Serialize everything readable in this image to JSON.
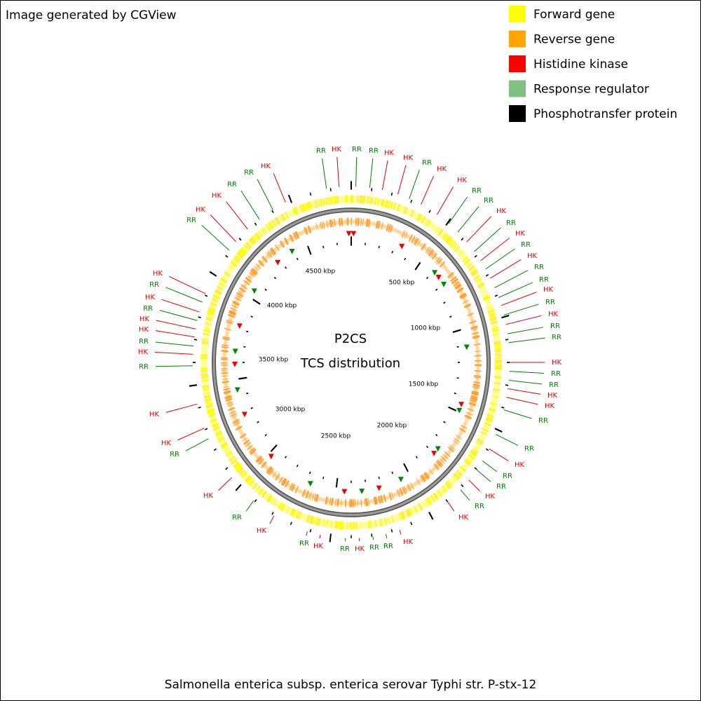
{
  "header": {
    "title": "Image generated by CGView"
  },
  "legend": [
    {
      "label": "Forward gene",
      "color": "#ffff00"
    },
    {
      "label": "Reverse gene",
      "color": "#ffa500"
    },
    {
      "label": "Histidine kinase",
      "color": "#ff0000"
    },
    {
      "label": "Response regulator",
      "color": "#80c080"
    },
    {
      "label": "Phosphotransfer protein",
      "color": "#000000"
    }
  ],
  "center": {
    "title": "P2CS",
    "subtitle": "TCS distribution"
  },
  "scale_labels": [
    "500 kbp",
    "1000 kbp",
    "1500 kbp",
    "2000 kbp",
    "2500 kbp",
    "3000 kbp",
    "3500 kbp",
    "4000 kbp",
    "4500 kbp"
  ],
  "callouts": [
    {
      "label": "RR",
      "color": "#008000"
    },
    {
      "label": "HK",
      "color": "#e00000"
    },
    {
      "label": "RR",
      "color": "#008000"
    },
    {
      "label": "RR",
      "color": "#008000"
    },
    {
      "label": "HK",
      "color": "#e00000"
    },
    {
      "label": "HK",
      "color": "#e00000"
    },
    {
      "label": "RR",
      "color": "#008000"
    },
    {
      "label": "HK",
      "color": "#e00000"
    },
    {
      "label": "HK",
      "color": "#e00000"
    },
    {
      "label": "RR",
      "color": "#008000"
    },
    {
      "label": "RR",
      "color": "#008000"
    },
    {
      "label": "HK",
      "color": "#e00000"
    },
    {
      "label": "RR",
      "color": "#008000"
    },
    {
      "label": "HK",
      "color": "#e00000"
    },
    {
      "label": "RR",
      "color": "#008000"
    },
    {
      "label": "HK",
      "color": "#e00000"
    },
    {
      "label": "RR",
      "color": "#008000"
    },
    {
      "label": "RR",
      "color": "#008000"
    },
    {
      "label": "HK",
      "color": "#e00000"
    },
    {
      "label": "RR",
      "color": "#008000"
    },
    {
      "label": "HK",
      "color": "#e00000"
    },
    {
      "label": "RR",
      "color": "#008000"
    },
    {
      "label": "RR",
      "color": "#008000"
    },
    {
      "label": "HK",
      "color": "#e00000"
    },
    {
      "label": "RR",
      "color": "#008000"
    },
    {
      "label": "RR",
      "color": "#008000"
    },
    {
      "label": "HK",
      "color": "#e00000"
    },
    {
      "label": "HK",
      "color": "#e00000"
    },
    {
      "label": "RR",
      "color": "#008000"
    },
    {
      "label": "RR",
      "color": "#008000"
    },
    {
      "label": "HK",
      "color": "#e00000"
    },
    {
      "label": "RR",
      "color": "#008000"
    },
    {
      "label": "RR",
      "color": "#008000"
    },
    {
      "label": "HK",
      "color": "#e00000"
    },
    {
      "label": "RR",
      "color": "#008000"
    },
    {
      "label": "HK",
      "color": "#e00000"
    },
    {
      "label": "HK",
      "color": "#e00000"
    },
    {
      "label": "RR",
      "color": "#008000"
    },
    {
      "label": "RR",
      "color": "#008000"
    },
    {
      "label": "HK",
      "color": "#e00000"
    },
    {
      "label": "RR",
      "color": "#008000"
    },
    {
      "label": "HK",
      "color": "#e00000"
    },
    {
      "label": "RR",
      "color": "#008000"
    },
    {
      "label": "HK",
      "color": "#e00000"
    },
    {
      "label": "RR",
      "color": "#008000"
    },
    {
      "label": "HK",
      "color": "#e00000"
    },
    {
      "label": "RR",
      "color": "#008000"
    },
    {
      "label": "HK",
      "color": "#e00000"
    },
    {
      "label": "HK",
      "color": "#e00000"
    },
    {
      "label": "RR",
      "color": "#008000"
    },
    {
      "label": "HK",
      "color": "#e00000"
    },
    {
      "label": "RR",
      "color": "#008000"
    },
    {
      "label": "HK",
      "color": "#e00000"
    },
    {
      "label": "HK",
      "color": "#e00000"
    },
    {
      "label": "RR",
      "color": "#008000"
    },
    {
      "label": "HK",
      "color": "#e00000"
    },
    {
      "label": "RR",
      "color": "#008000"
    },
    {
      "label": "HK",
      "color": "#e00000"
    },
    {
      "label": "RR",
      "color": "#008000"
    },
    {
      "label": "HK",
      "color": "#e00000"
    },
    {
      "label": "HK",
      "color": "#e00000"
    },
    {
      "label": "RR",
      "color": "#008000"
    },
    {
      "label": "RR",
      "color": "#008000"
    },
    {
      "label": "HK",
      "color": "#e00000"
    }
  ],
  "caption": "Salmonella enterica subsp. enterica serovar Typhi str. P-stx-12"
}
